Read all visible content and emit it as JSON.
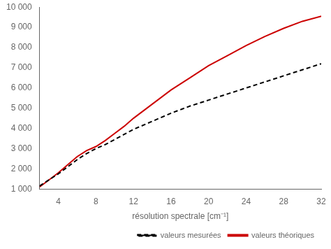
{
  "chart_data": {
    "type": "line",
    "xlabel": "résolution spectrale [cm⁻¹]",
    "x": [
      2,
      3,
      4,
      5,
      6,
      7,
      8,
      9,
      10,
      11,
      12,
      14,
      16,
      18,
      20,
      22,
      24,
      26,
      28,
      30,
      32
    ],
    "series": [
      {
        "name": "valeurs mesurées",
        "color": "#000000",
        "line_style": "dashed",
        "values": [
          1150,
          1450,
          1750,
          2100,
          2450,
          2750,
          3000,
          3200,
          3450,
          3700,
          3950,
          4350,
          4750,
          5100,
          5400,
          5700,
          6000,
          6300,
          6600,
          6900,
          7200
        ]
      },
      {
        "name": "valeurs théoriques",
        "color": "#cc0000",
        "line_style": "solid",
        "values": [
          1100,
          1450,
          1800,
          2200,
          2600,
          2900,
          3100,
          3400,
          3750,
          4100,
          4500,
          5200,
          5900,
          6500,
          7100,
          7600,
          8100,
          8550,
          8950,
          9300,
          9550
        ]
      }
    ],
    "xlim": [
      2,
      32
    ],
    "ylim": [
      1000,
      10000
    ],
    "xticks": [
      4,
      8,
      12,
      16,
      20,
      24,
      28,
      32
    ],
    "yticks": [
      {
        "value": 1000,
        "label": "1 000"
      },
      {
        "value": 2000,
        "label": "2 000"
      },
      {
        "value": 3000,
        "label": "3 000"
      },
      {
        "value": 4000,
        "label": "4 000"
      },
      {
        "value": 5000,
        "label": "5 000"
      },
      {
        "value": 6000,
        "label": "6 000"
      },
      {
        "value": 7000,
        "label": "7 000"
      },
      {
        "value": 8000,
        "label": "8 000"
      },
      {
        "value": 9000,
        "label": "9 000"
      },
      {
        "value": 10000,
        "label": "10 000"
      }
    ],
    "grid": false,
    "legend": "lower right"
  }
}
